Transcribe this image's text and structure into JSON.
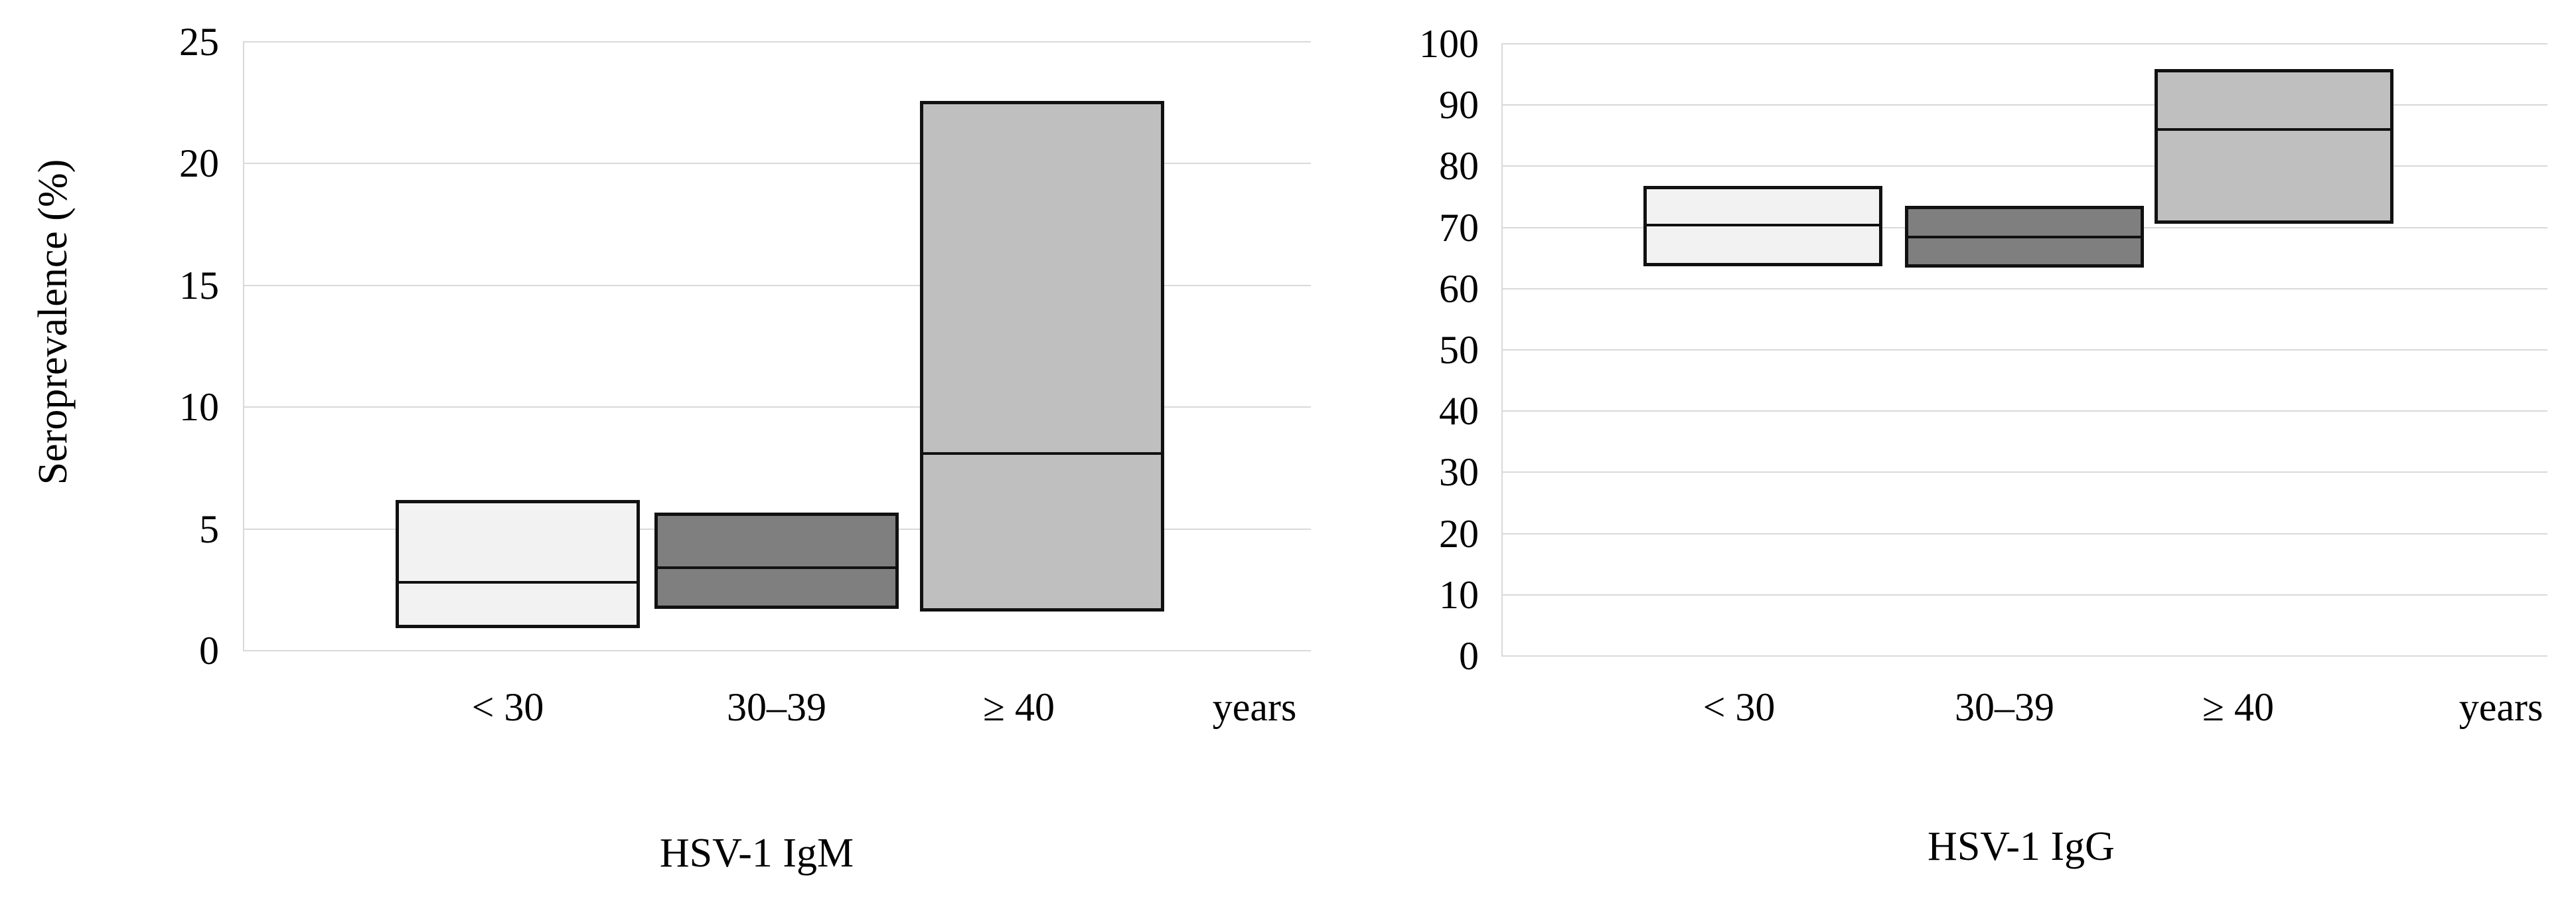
{
  "figure": {
    "ylabel": "Seroprevalence (%)"
  },
  "colors": {
    "background": "#ffffff",
    "grid": "#d9d9d9",
    "axis": "#d9d9d9",
    "bar_border": "#111111",
    "text": "#000000",
    "fill_lt30": "#f2f2f2",
    "fill_30_39": "#7f7f7f",
    "fill_ge40": "#bfbfbf"
  },
  "chart_data": [
    {
      "type": "bar",
      "subtype": "floating-box-ci",
      "title": "HSV-1 IgM",
      "ylabel": "Seroprevalence (%)",
      "categories": [
        "< 30",
        "30–39",
        "≥ 40"
      ],
      "x_suffix_label": "years",
      "ylim": [
        0,
        25
      ],
      "yticks": [
        0,
        5,
        10,
        15,
        20,
        25
      ],
      "grid": true,
      "legend": "none",
      "bars": [
        {
          "category": "< 30",
          "low": 1.0,
          "mid": 2.8,
          "high": 6.1,
          "fill": "#f2f2f2"
        },
        {
          "category": "30–39",
          "low": 1.8,
          "mid": 3.4,
          "high": 5.6,
          "fill": "#7f7f7f"
        },
        {
          "category": "≥ 40",
          "low": 1.7,
          "mid": 8.1,
          "high": 22.5,
          "fill": "#bfbfbf"
        }
      ]
    },
    {
      "type": "bar",
      "subtype": "floating-box-ci",
      "title": "HSV-1 IgG",
      "ylabel": "",
      "categories": [
        "< 30",
        "30–39",
        "≥ 40"
      ],
      "x_suffix_label": "years",
      "ylim": [
        0,
        100
      ],
      "yticks": [
        0,
        10,
        20,
        30,
        40,
        50,
        60,
        70,
        80,
        90,
        100
      ],
      "grid": true,
      "legend": "none",
      "bars": [
        {
          "category": "< 30",
          "low": 64.0,
          "mid": 70.4,
          "high": 76.5,
          "fill": "#f2f2f2"
        },
        {
          "category": "30–39",
          "low": 63.8,
          "mid": 68.4,
          "high": 73.2,
          "fill": "#7f7f7f"
        },
        {
          "category": "≥ 40",
          "low": 70.9,
          "mid": 86.0,
          "high": 95.5,
          "fill": "#bfbfbf"
        }
      ]
    }
  ]
}
